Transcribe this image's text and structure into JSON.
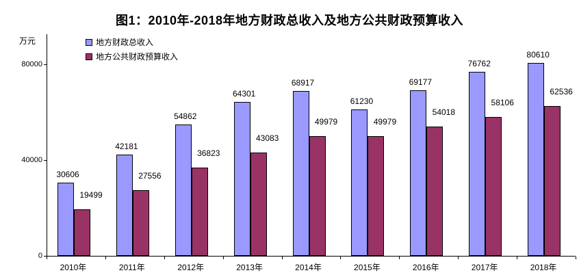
{
  "title": "图1：2010年-2018年地方财政总收入及地方公共财政预算收入",
  "y_axis": {
    "unit": "万元",
    "tick_labels": [
      "0",
      "40000",
      "80000"
    ]
  },
  "legend": [
    {
      "label": "地方财政总收入",
      "color": "#9999FF"
    },
    {
      "label": "地方公共财政预算收入",
      "color": "#993366"
    }
  ],
  "chart_data": {
    "type": "bar",
    "title": "图1：2010年-2018年地方财政总收入及地方公共财政预算收入",
    "categories": [
      "2010年",
      "2011年",
      "2012年",
      "2013年",
      "2014年",
      "2015年",
      "2016年",
      "2017年",
      "2018年"
    ],
    "series": [
      {
        "name": "地方财政总收入",
        "color": "#9999FF",
        "values": [
          30606,
          42181,
          54862,
          64301,
          68917,
          61230,
          69177,
          76762,
          80610
        ]
      },
      {
        "name": "地方公共财政预算收入",
        "color": "#993366",
        "values": [
          19499,
          27556,
          36823,
          43083,
          49979,
          49979,
          54018,
          58106,
          62536
        ]
      }
    ],
    "ylabel": "万元",
    "ylim": [
      0,
      92500
    ],
    "yticks": [
      0,
      40000,
      80000
    ],
    "grid": false,
    "data_labels": true,
    "bar_border_color": "#000000",
    "legend_position": "top-left"
  }
}
